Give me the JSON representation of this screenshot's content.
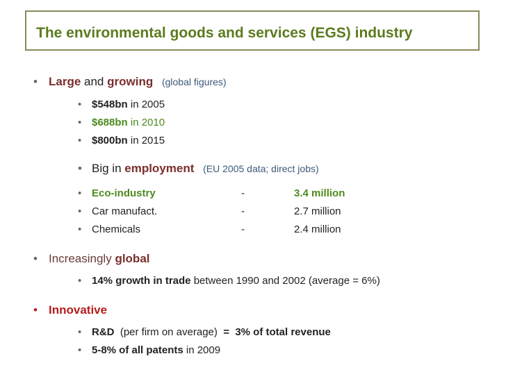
{
  "title": "The environmental goods and services (EGS) industry",
  "items": {
    "large": {
      "w1": "Large",
      "w2": " and ",
      "w3": "growing",
      "note": "(global figures)"
    },
    "y2005": {
      "value": "$548bn",
      "text": " in 2005"
    },
    "y2010": {
      "value": "$688bn",
      "text": " in 2010"
    },
    "y2015": {
      "value": "$800bn",
      "text": " in 2015"
    },
    "employment": {
      "w1": "Big in ",
      "w2": "employment",
      "note": "(EU 2005 data; direct jobs)"
    },
    "jobs": [
      {
        "sector": "Eco-industry",
        "dash": "-",
        "value": "3.4 million"
      },
      {
        "sector": "Car manufact.",
        "dash": "-",
        "value": "2.7 million"
      },
      {
        "sector": "Chemicals",
        "dash": "-",
        "value": "2.4 million"
      }
    ],
    "global": {
      "w1": "Increasingly ",
      "w2": "global"
    },
    "trade": {
      "bold": "14% growth in trade",
      "text": " between 1990 and 2002 (average  =  6%)"
    },
    "innovative": {
      "label": "Innovative"
    },
    "rd": {
      "bold1": "R&D",
      "text": "  (per firm on average)  ",
      "bold2": "=  3% of total revenue"
    },
    "patents": {
      "bold": "5-8% of all patents",
      "text": " in 2009"
    }
  }
}
